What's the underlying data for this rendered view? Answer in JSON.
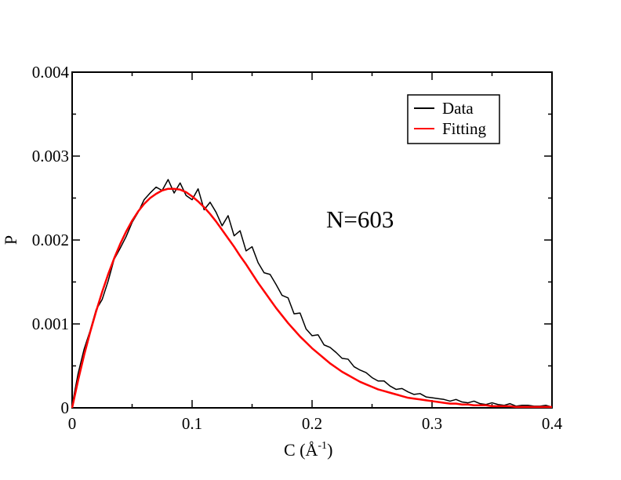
{
  "chart_data": {
    "type": "line",
    "xlabel": "C (Å-1)",
    "ylabel": "P",
    "xlim": [
      0,
      0.4
    ],
    "ylim": [
      0,
      0.004
    ],
    "x_ticks": [
      "0",
      "0.1",
      "0.2",
      "0.3",
      "0.4"
    ],
    "y_ticks": [
      "0",
      "0.001",
      "0.002",
      "0.003",
      "0.004"
    ],
    "grid": false,
    "legend_position": "top-right",
    "annotation": "N=603",
    "series": [
      {
        "name": "Data",
        "color": "#000000",
        "x": [
          0.0,
          0.005,
          0.01,
          0.015,
          0.02,
          0.025,
          0.03,
          0.035,
          0.04,
          0.045,
          0.05,
          0.055,
          0.06,
          0.065,
          0.07,
          0.075,
          0.08,
          0.085,
          0.09,
          0.095,
          0.1,
          0.105,
          0.11,
          0.115,
          0.12,
          0.125,
          0.13,
          0.135,
          0.14,
          0.145,
          0.15,
          0.155,
          0.16,
          0.165,
          0.17,
          0.175,
          0.18,
          0.185,
          0.19,
          0.195,
          0.2,
          0.205,
          0.21,
          0.215,
          0.22,
          0.225,
          0.23,
          0.235,
          0.24,
          0.245,
          0.25,
          0.255,
          0.26,
          0.265,
          0.27,
          0.275,
          0.28,
          0.285,
          0.29,
          0.295,
          0.3,
          0.305,
          0.31,
          0.315,
          0.32,
          0.325,
          0.33,
          0.335,
          0.34,
          0.345,
          0.35,
          0.355,
          0.36,
          0.365,
          0.37,
          0.375,
          0.38,
          0.385,
          0.39,
          0.395,
          0.4
        ],
        "y": [
          3e-05,
          0.00041,
          0.0007,
          0.00092,
          0.00117,
          0.00129,
          0.00151,
          0.00177,
          0.0019,
          0.00204,
          0.00221,
          0.00233,
          0.00248,
          0.00256,
          0.00263,
          0.00259,
          0.00272,
          0.00256,
          0.00268,
          0.00253,
          0.00248,
          0.00261,
          0.00236,
          0.00245,
          0.00233,
          0.00217,
          0.00229,
          0.00205,
          0.00211,
          0.00187,
          0.00192,
          0.00173,
          0.00161,
          0.00159,
          0.00147,
          0.00134,
          0.00131,
          0.00112,
          0.00113,
          0.00094,
          0.00086,
          0.00087,
          0.00075,
          0.00072,
          0.00066,
          0.00059,
          0.00058,
          0.00049,
          0.00045,
          0.00042,
          0.00036,
          0.00032,
          0.00032,
          0.00026,
          0.00022,
          0.00023,
          0.00019,
          0.00016,
          0.00017,
          0.00013,
          0.00012,
          0.00011,
          0.0001,
          8e-05,
          0.0001,
          7e-05,
          6e-05,
          8e-05,
          5e-05,
          4e-05,
          6e-05,
          4e-05,
          3e-05,
          5e-05,
          2e-05,
          3e-05,
          3e-05,
          2e-05,
          2e-05,
          3e-05,
          1e-05
        ]
      },
      {
        "name": "Fitting",
        "color": "#ff0000",
        "x": [
          0.0,
          0.005,
          0.01,
          0.015,
          0.02,
          0.025,
          0.03,
          0.035,
          0.04,
          0.045,
          0.05,
          0.055,
          0.06,
          0.065,
          0.07,
          0.075,
          0.08,
          0.085,
          0.09,
          0.095,
          0.1,
          0.105,
          0.11,
          0.115,
          0.12,
          0.125,
          0.13,
          0.135,
          0.14,
          0.145,
          0.15,
          0.155,
          0.16,
          0.165,
          0.17,
          0.175,
          0.18,
          0.185,
          0.19,
          0.195,
          0.2,
          0.205,
          0.21,
          0.215,
          0.22,
          0.225,
          0.23,
          0.235,
          0.24,
          0.245,
          0.25,
          0.255,
          0.26,
          0.265,
          0.27,
          0.275,
          0.28,
          0.285,
          0.29,
          0.295,
          0.3,
          0.305,
          0.31,
          0.315,
          0.32,
          0.325,
          0.33,
          0.335,
          0.34,
          0.345,
          0.35,
          0.355,
          0.36,
          0.365,
          0.37,
          0.375,
          0.38,
          0.385,
          0.39,
          0.395,
          0.4
        ],
        "y": [
          0.0,
          0.00033,
          0.00063,
          0.0009,
          0.00115,
          0.00138,
          0.00159,
          0.00178,
          0.00195,
          0.0021,
          0.00223,
          0.00234,
          0.00243,
          0.0025,
          0.00255,
          0.00259,
          0.00261,
          0.00261,
          0.0026,
          0.00257,
          0.00252,
          0.00246,
          0.00239,
          0.00231,
          0.00222,
          0.00212,
          0.00202,
          0.00192,
          0.00181,
          0.00171,
          0.0016,
          0.00149,
          0.00139,
          0.00129,
          0.00119,
          0.0011,
          0.00101,
          0.00093,
          0.00085,
          0.00078,
          0.00071,
          0.00065,
          0.00059,
          0.00053,
          0.00048,
          0.00043,
          0.00039,
          0.00035,
          0.00031,
          0.00028,
          0.00025,
          0.00022,
          0.0002,
          0.00018,
          0.00016,
          0.00014,
          0.00012,
          0.00011,
          0.0001,
          9e-05,
          8e-05,
          7e-05,
          6e-05,
          5e-05,
          5e-05,
          4e-05,
          4e-05,
          3e-05,
          3e-05,
          3e-05,
          2e-05,
          2e-05,
          2e-05,
          2e-05,
          1e-05,
          1e-05,
          1e-05,
          1e-05,
          1e-05,
          1e-05,
          1e-05
        ]
      }
    ]
  }
}
